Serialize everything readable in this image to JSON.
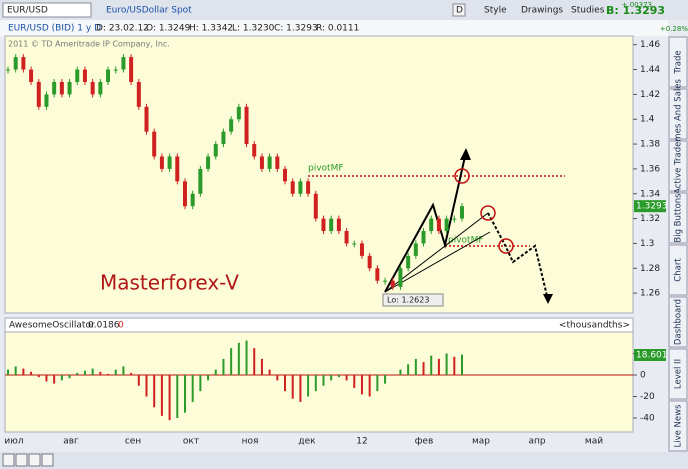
{
  "toolbar": {
    "symbol": "EUR/USD",
    "description": "Euro/USDollar Spot",
    "period": "D",
    "style": "Style",
    "drawings": "Drawings",
    "studies": "Studies",
    "bid": "B: 1.3293",
    "change": "+.00373",
    "change_pct": "+0.28%"
  },
  "info": {
    "instrument": "EUR/USD (BID) 1 y D",
    "date": "D: 23.02.12",
    "open": "O: 1.3249",
    "high": "H: 1.3342",
    "low": "L: 1.3230",
    "close": "C: 1.3293",
    "range": "R: 0.0111",
    "copyright": "2011 © TD Ameritrade IP Company, Inc."
  },
  "tabs": [
    "Trade",
    "Times And Sales",
    "Active Trader",
    "Big Buttons",
    "Chart",
    "Dashboard",
    "Level II",
    "Live News"
  ],
  "x_labels": [
    "июл",
    "авг",
    "сен",
    "окт",
    "ноя",
    "дек",
    "12",
    "фев",
    "мар",
    "апр",
    "май"
  ],
  "chart_data": [
    {
      "type": "candle",
      "ylim": [
        1.244,
        1.467
      ],
      "yticks": [
        1.46,
        1.44,
        1.42,
        1.4,
        1.38,
        1.36,
        1.34,
        1.32,
        1.3,
        1.28,
        1.26
      ],
      "last_label": "1.3293",
      "annotations": {
        "pivot_top": "pivotMF",
        "pivot_bottom": "pivotMF",
        "brand": "Masterforex-V",
        "low": "Lo: 1.2623"
      },
      "values": [
        1.44,
        1.45,
        1.44,
        1.43,
        1.41,
        1.42,
        1.43,
        1.42,
        1.43,
        1.44,
        1.43,
        1.42,
        1.43,
        1.44,
        1.44,
        1.45,
        1.43,
        1.41,
        1.39,
        1.37,
        1.36,
        1.37,
        1.35,
        1.33,
        1.34,
        1.36,
        1.37,
        1.38,
        1.39,
        1.4,
        1.41,
        1.38,
        1.37,
        1.36,
        1.37,
        1.36,
        1.35,
        1.34,
        1.35,
        1.34,
        1.32,
        1.31,
        1.32,
        1.31,
        1.3,
        1.3,
        1.29,
        1.28,
        1.27,
        1.27,
        1.265,
        1.28,
        1.29,
        1.3,
        1.31,
        1.32,
        1.31,
        1.32,
        1.32,
        1.33
      ],
      "up_color": "#2a9a2a",
      "down_color": "#d02020"
    },
    {
      "type": "oscillator",
      "name": "AwesomeOscillator",
      "value_label": "0.0186",
      "flag": "0",
      "units": "<thousandths>",
      "last_label": "18.601",
      "ylim": [
        -53,
        40
      ],
      "yticks": [
        20,
        0,
        -20,
        -40
      ],
      "values": [
        5,
        8,
        6,
        3,
        -2,
        -6,
        -8,
        -5,
        -3,
        2,
        4,
        6,
        3,
        1,
        5,
        8,
        2,
        -10,
        -20,
        -30,
        -38,
        -42,
        -40,
        -35,
        -25,
        -15,
        -5,
        5,
        15,
        25,
        30,
        32,
        25,
        15,
        5,
        -5,
        -15,
        -22,
        -25,
        -20,
        -15,
        -10,
        -5,
        -2,
        -5,
        -12,
        -18,
        -20,
        -15,
        -8,
        0,
        5,
        10,
        15,
        12,
        18,
        15,
        20,
        17,
        19
      ],
      "up_color": "#2a9a2a",
      "down_color": "#d02020"
    }
  ]
}
